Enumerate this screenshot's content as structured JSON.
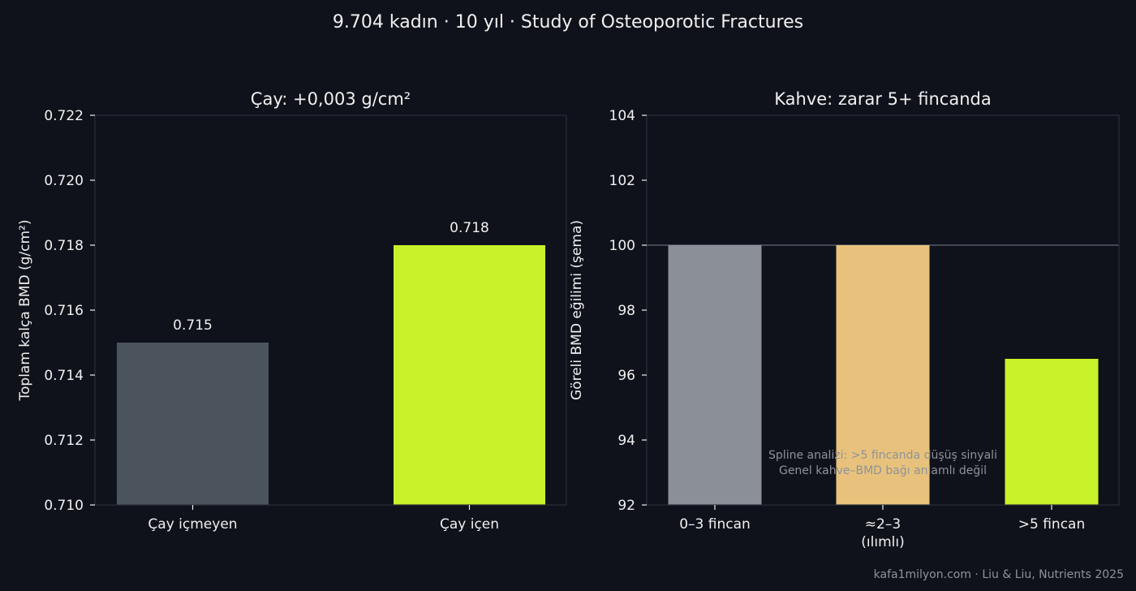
{
  "suptitle": "9.704 kadın · 10 yıl · Study of Osteoporotic Fractures",
  "source": "kafa1milyon.com · Liu & Liu, Nutrients 2025",
  "chart_data": [
    {
      "type": "bar",
      "title": "Çay: +0,003 g/cm²",
      "ylabel": "Toplam kalça BMD (g/cm²)",
      "xlabel": "",
      "categories": [
        "Çay içmeyen",
        "Çay içen"
      ],
      "values": [
        0.715,
        0.718
      ],
      "value_labels": [
        "0.715",
        "0.718"
      ],
      "colors": [
        "#4b545d",
        "#c8f22a"
      ],
      "ylim": [
        0.71,
        0.722
      ],
      "yticks": [
        0.71,
        0.712,
        0.714,
        0.716,
        0.718,
        0.72,
        0.722
      ],
      "ytick_labels": [
        "0.710",
        "0.712",
        "0.714",
        "0.716",
        "0.718",
        "0.720",
        "0.722"
      ],
      "grid": false
    },
    {
      "type": "bar",
      "title": "Kahve: zarar 5+ fincanda",
      "ylabel": "Göreli BMD eğilimi (şema)",
      "xlabel": "",
      "categories": [
        "0–3 fincan",
        "≈2–3\n(ılımlı)",
        ">5 fincan"
      ],
      "values": [
        100,
        100,
        96.5
      ],
      "colors": [
        "#8b8f98",
        "#e8c27c",
        "#c8f22a"
      ],
      "ylim": [
        92,
        104
      ],
      "yticks": [
        92,
        94,
        96,
        98,
        100,
        102,
        104
      ],
      "ytick_labels": [
        "92",
        "94",
        "96",
        "98",
        "100",
        "102",
        "104"
      ],
      "reference_line": 100,
      "annotation": [
        "Spline analizi: >5 fincanda düşüş sinyali",
        "Genel kahve–BMD bağı anlamlı değil"
      ],
      "grid": false
    }
  ]
}
